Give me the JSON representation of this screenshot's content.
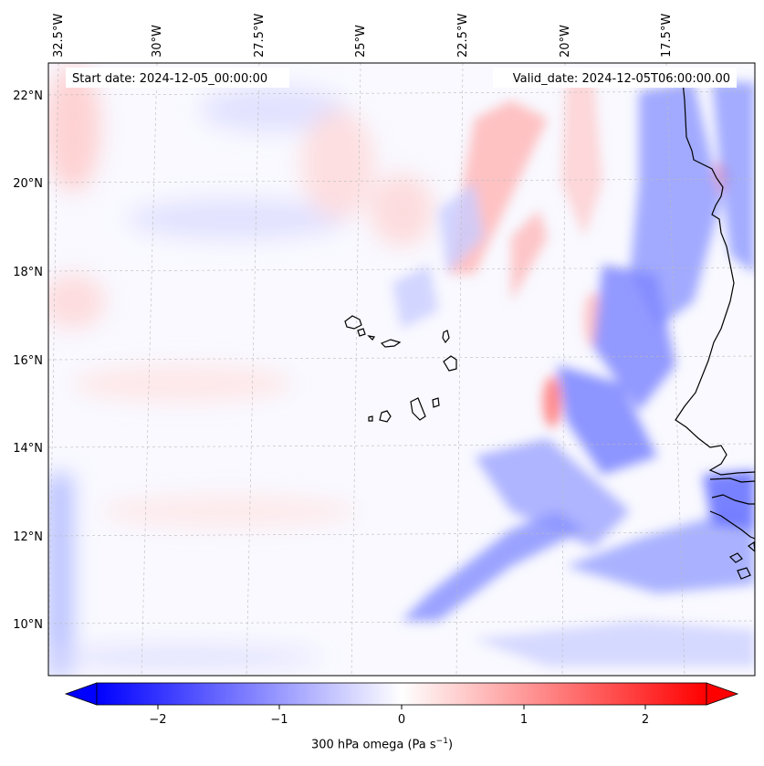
{
  "map": {
    "start_label": "Start date: 2024-12-05_00:00:00",
    "valid_label": "Valid_date: 2024-12-05T06:00:00.00",
    "lon_ticks": [
      "32.5°W",
      "30°W",
      "27.5°W",
      "25°W",
      "22.5°W",
      "20°W",
      "17.5°W"
    ],
    "lat_ticks": [
      "22°N",
      "20°N",
      "18°N",
      "16°N",
      "14°N",
      "12°N",
      "10°N"
    ],
    "extent": {
      "lon_min": -32.6,
      "lon_max": -15.3,
      "lat_min": 8.9,
      "lat_max": 22.8
    },
    "grid": true,
    "land_outline_color": "#000000",
    "colors": {
      "negative": "#0000ff",
      "zero": "#ffffff",
      "positive": "#ff0000"
    }
  },
  "colorbar": {
    "ticks": [
      "−2",
      "−1",
      "0",
      "1",
      "2"
    ],
    "tick_values": [
      -2,
      -1,
      0,
      1,
      2
    ],
    "range": [
      -2.5,
      2.5
    ],
    "extend": "both",
    "label": "300 hPa omega (Pa s",
    "label_sup": "−1",
    "label_end": ")"
  }
}
